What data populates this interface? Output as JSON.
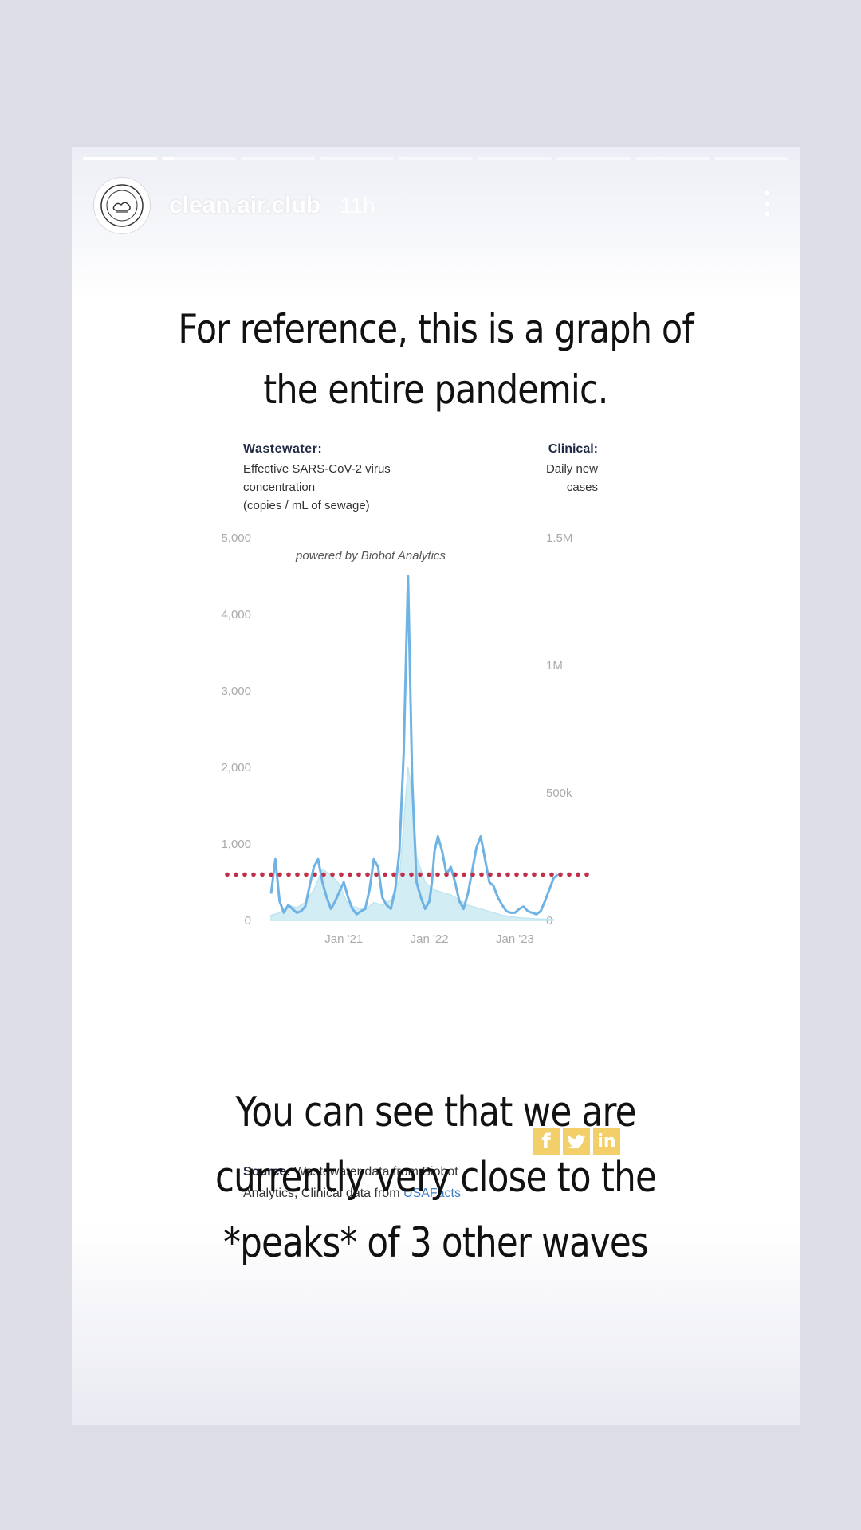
{
  "story": {
    "username": "clean.air.club",
    "time": "11h",
    "progress": [
      1,
      0.15,
      0,
      0,
      0,
      0,
      0,
      0,
      0
    ],
    "headline_lines": [
      "For reference, this is a graph of",
      "the entire pandemic."
    ],
    "caption_lines": [
      "You can see that we are",
      "currently very close to the",
      "*peaks* of 3 other waves"
    ]
  },
  "figure": {
    "left_title": "Wastewater:",
    "left_sub_lines": [
      "Effective SARS-CoV-2 virus",
      "concentration",
      "(copies / mL of sewage)"
    ],
    "right_title": "Clinical:",
    "right_sub_lines": [
      "Daily new",
      "cases"
    ],
    "watermark": "powered by Biobot Analytics",
    "source_label": "Source:",
    "source_text_1": "Wastewater data from Biobot",
    "source_text_2": "Analytics; Clinical data from",
    "source_link": "USAFacts",
    "share_buttons": [
      "f",
      "t",
      "in"
    ]
  },
  "chart_data": {
    "type": "line",
    "y_left_ticks": [
      0,
      1000,
      2000,
      3000,
      4000,
      5000
    ],
    "y_left_labels": [
      "0",
      "1,000",
      "2,000",
      "3,000",
      "4,000",
      "5,000"
    ],
    "y_right_ticks": [
      0,
      500000,
      1000000,
      1500000
    ],
    "y_right_labels": [
      "0",
      "500k",
      "1M",
      "1.5M"
    ],
    "x_ticks": [
      2021.0,
      2022.0,
      2023.0
    ],
    "x_labels": [
      "Jan '21",
      "Jan '22",
      "Jan '23"
    ],
    "xlim": [
      2020.15,
      2023.55
    ],
    "ylim_left": [
      0,
      5000
    ],
    "ylim_right": [
      0,
      1500000
    ],
    "reference_line_y": 600,
    "wastewater_color": "#6fb3e4",
    "cases_color": "#bfe6ef",
    "reference_color": "#c0304a",
    "wastewater": {
      "x": [
        2020.15,
        2020.2,
        2020.25,
        2020.3,
        2020.35,
        2020.4,
        2020.45,
        2020.5,
        2020.55,
        2020.6,
        2020.65,
        2020.7,
        2020.75,
        2020.8,
        2020.85,
        2020.9,
        2020.95,
        2021.0,
        2021.05,
        2021.1,
        2021.15,
        2021.2,
        2021.25,
        2021.3,
        2021.35,
        2021.4,
        2021.45,
        2021.5,
        2021.55,
        2021.6,
        2021.65,
        2021.7,
        2021.75,
        2021.8,
        2021.85,
        2021.9,
        2021.95,
        2022.0,
        2022.03,
        2022.06,
        2022.1,
        2022.15,
        2022.2,
        2022.25,
        2022.3,
        2022.35,
        2022.4,
        2022.45,
        2022.5,
        2022.55,
        2022.6,
        2022.65,
        2022.7,
        2022.75,
        2022.8,
        2022.85,
        2022.9,
        2022.95,
        2023.0,
        2023.05,
        2023.1,
        2023.15,
        2023.2,
        2023.25,
        2023.3,
        2023.35,
        2023.4,
        2023.45,
        2023.5
      ],
      "y": [
        350,
        800,
        250,
        100,
        200,
        150,
        100,
        120,
        180,
        450,
        700,
        800,
        500,
        300,
        150,
        250,
        380,
        500,
        300,
        150,
        80,
        120,
        150,
        400,
        800,
        700,
        300,
        200,
        150,
        400,
        900,
        2200,
        4500,
        1800,
        500,
        300,
        150,
        250,
        500,
        900,
        1100,
        900,
        600,
        700,
        500,
        250,
        150,
        350,
        650,
        950,
        1100,
        800,
        500,
        450,
        300,
        200,
        120,
        100,
        100,
        150,
        180,
        120,
        100,
        80,
        120,
        250,
        400,
        550,
        600
      ],
      "visible_range": [
        2020.15,
        2023.5
      ]
    },
    "cases": {
      "x": [
        2020.15,
        2020.25,
        2020.35,
        2020.45,
        2020.55,
        2020.65,
        2020.75,
        2020.85,
        2020.95,
        2021.05,
        2021.15,
        2021.25,
        2021.35,
        2021.45,
        2021.55,
        2021.65,
        2021.75,
        2021.8,
        2021.85,
        2021.95,
        2022.05,
        2022.15,
        2022.25,
        2022.35,
        2022.45,
        2022.55,
        2022.65,
        2022.75,
        2022.85,
        2022.95,
        2023.05,
        2023.15,
        2023.25,
        2023.35,
        2023.45
      ],
      "y": [
        20000,
        30000,
        60000,
        50000,
        70000,
        120000,
        200000,
        180000,
        140000,
        60000,
        50000,
        40000,
        70000,
        60000,
        80000,
        160000,
        600000,
        500000,
        250000,
        150000,
        120000,
        110000,
        100000,
        80000,
        60000,
        50000,
        40000,
        30000,
        20000,
        15000,
        10000,
        8000,
        6000,
        5000,
        4000
      ]
    }
  }
}
